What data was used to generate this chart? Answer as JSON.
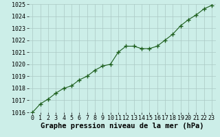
{
  "x": [
    0,
    1,
    2,
    3,
    4,
    5,
    6,
    7,
    8,
    9,
    10,
    11,
    12,
    13,
    14,
    15,
    16,
    17,
    18,
    19,
    20,
    21,
    22,
    23
  ],
  "y": [
    1016.0,
    1016.7,
    1017.1,
    1017.6,
    1018.0,
    1018.2,
    1018.7,
    1019.0,
    1019.5,
    1019.85,
    1020.0,
    1021.0,
    1021.5,
    1021.5,
    1021.3,
    1021.3,
    1021.5,
    1022.0,
    1022.5,
    1023.2,
    1023.7,
    1024.1,
    1024.6,
    1024.9
  ],
  "ylim": [
    1016,
    1025
  ],
  "yticks": [
    1016,
    1017,
    1018,
    1019,
    1020,
    1021,
    1022,
    1023,
    1024,
    1025
  ],
  "xticks": [
    0,
    1,
    2,
    3,
    4,
    5,
    6,
    7,
    8,
    9,
    10,
    11,
    12,
    13,
    14,
    15,
    16,
    17,
    18,
    19,
    20,
    21,
    22,
    23
  ],
  "xlabel": "Graphe pression niveau de la mer (hPa)",
  "line_color": "#1a5c1a",
  "marker": "+",
  "marker_size": 4.0,
  "bg_color": "#cceee8",
  "grid_color": "#aac8c4",
  "fig_bg": "#cceee8",
  "xlabel_fontsize": 7.5,
  "tick_fontsize": 6.0
}
